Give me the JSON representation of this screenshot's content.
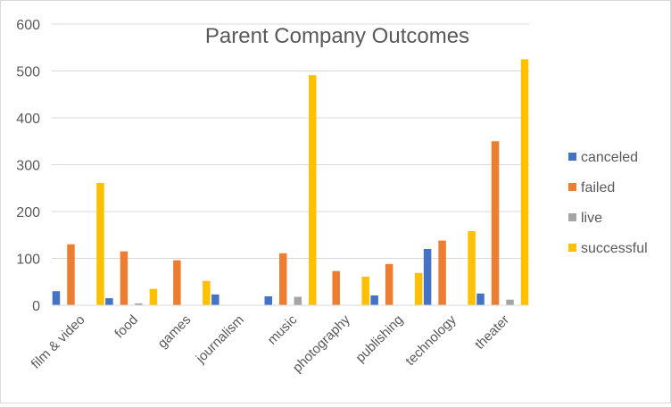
{
  "chart_data": {
    "type": "bar",
    "title": "Parent Company Outcomes",
    "xlabel": "",
    "ylabel": "",
    "ylim": [
      0,
      600
    ],
    "yticks": [
      0,
      100,
      200,
      300,
      400,
      500,
      600
    ],
    "grid": true,
    "legend_position": "right",
    "categories": [
      "film & video",
      "food",
      "games",
      "journalism",
      "music",
      "photography",
      "publishing",
      "technology",
      "theater"
    ],
    "series": [
      {
        "name": "canceled",
        "color": "#4472C4",
        "values": [
          30,
          15,
          0,
          23,
          19,
          0,
          21,
          120,
          25
        ]
      },
      {
        "name": "failed",
        "color": "#ED7D31",
        "values": [
          130,
          115,
          96,
          0,
          111,
          73,
          88,
          138,
          350
        ]
      },
      {
        "name": "live",
        "color": "#A5A5A5",
        "values": [
          0,
          4,
          0,
          0,
          18,
          0,
          0,
          0,
          12
        ]
      },
      {
        "name": "successful",
        "color": "#FFC000",
        "values": [
          261,
          35,
          52,
          0,
          491,
          61,
          69,
          158,
          525
        ]
      }
    ]
  }
}
